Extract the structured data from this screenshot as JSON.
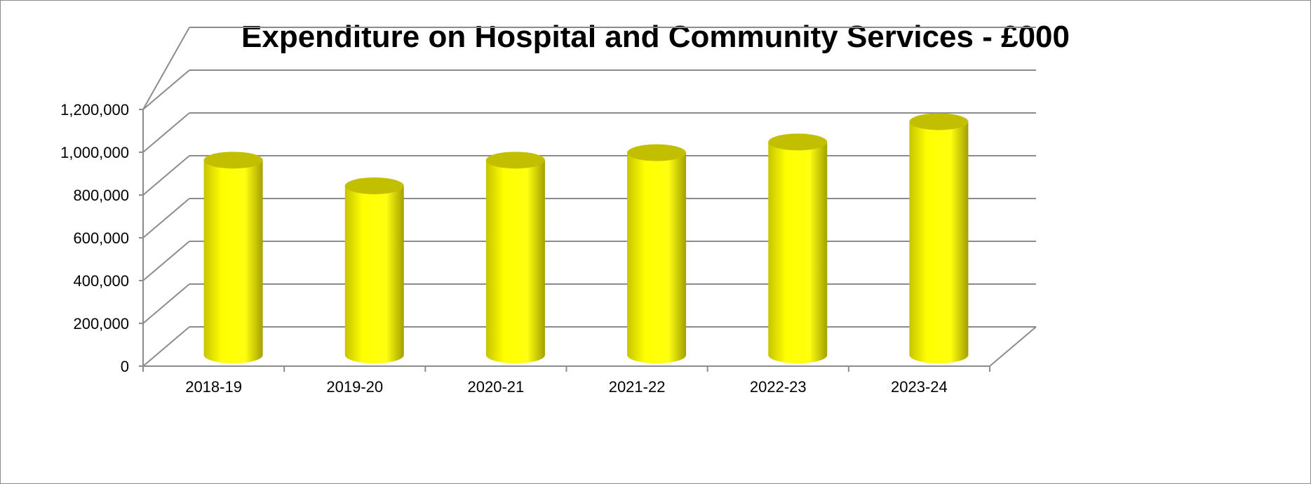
{
  "chart_data": {
    "type": "bar",
    "title": "Expenditure on Hospital and Community Services - £000",
    "categories": [
      "2018-19",
      "2019-20",
      "2020-21",
      "2021-22",
      "2022-23",
      "2023-24"
    ],
    "series": [
      {
        "values": [
          930000,
          810000,
          930000,
          965000,
          1015000,
          1110000
        ]
      }
    ],
    "ylim": [
      0,
      1200000
    ],
    "yticks": [
      0,
      200000,
      400000,
      600000,
      800000,
      1000000,
      1200000
    ],
    "ytick_labels": [
      "0",
      "200,000",
      "400,000",
      "600,000",
      "800,000",
      "1,000,000",
      "1,200,000"
    ],
    "xlabel": "",
    "ylabel": "",
    "grid": true,
    "legend": "none",
    "bar_style": "3d-cylinder",
    "bar_color": "#ffff00"
  }
}
